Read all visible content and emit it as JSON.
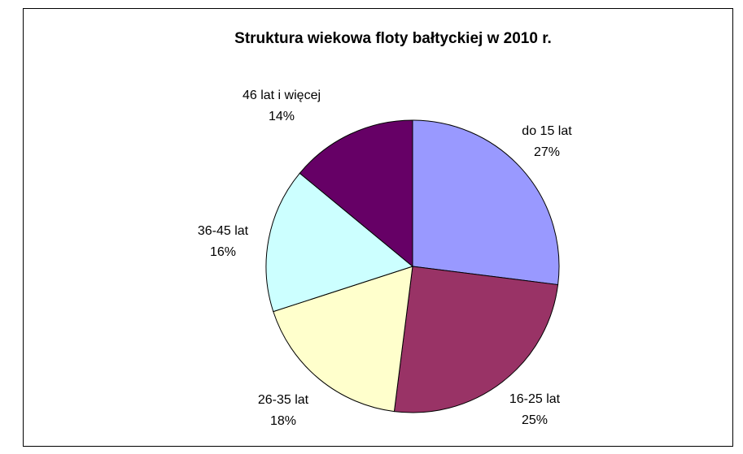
{
  "chart_data": {
    "type": "pie",
    "title": "Struktura wiekowa floty bałtyckiej w 2010 r.",
    "categories": [
      "do 15 lat",
      "16-25 lat",
      "26-35 lat",
      "36-45 lat",
      "46 lat i więcej"
    ],
    "values": [
      27,
      25,
      18,
      16,
      14
    ],
    "value_labels": [
      "27%",
      "25%",
      "18%",
      "16%",
      "14%"
    ],
    "colors": [
      "#9999ff",
      "#993366",
      "#ffffcc",
      "#ccffff",
      "#660066"
    ]
  }
}
